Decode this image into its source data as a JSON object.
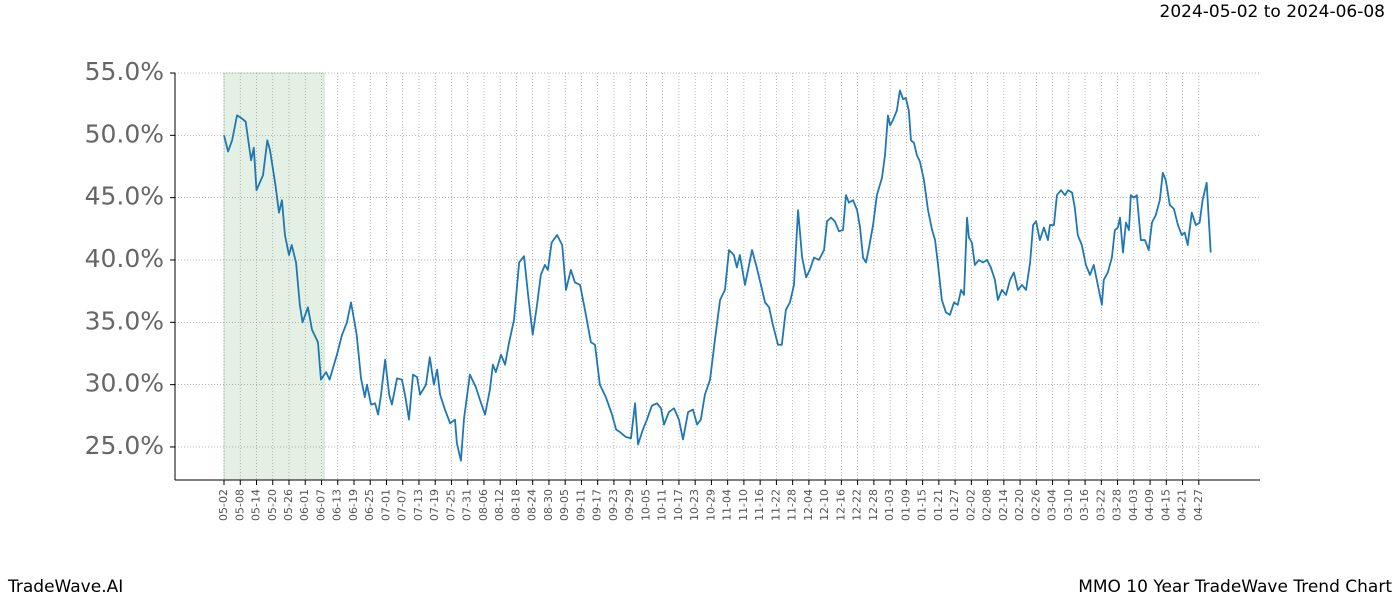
{
  "chart_data": {
    "type": "line",
    "title": "2024-05-02 to 2024-06-08",
    "footer_left": "TradeWave.AI",
    "footer_right": "MMO 10 Year TradeWave Trend Chart",
    "color": "#1f77b4",
    "grid": true,
    "highlight_span": [
      0,
      37
    ],
    "highlight_color": "#d8ead8",
    "xlim": [
      -18.1,
      382.6
    ],
    "ylim": [
      22.35,
      55.0
    ],
    "yticks": [
      {
        "value": 25,
        "label": "25.0%"
      },
      {
        "value": 30,
        "label": "30.0%"
      },
      {
        "value": 35,
        "label": "35.0%"
      },
      {
        "value": 40,
        "label": "40.0%"
      },
      {
        "value": 45,
        "label": "45.0%"
      },
      {
        "value": 50,
        "label": "50.0%"
      },
      {
        "value": 55,
        "label": "55.0%"
      }
    ],
    "xticks": [
      {
        "value": 0,
        "label": "05-02"
      },
      {
        "value": 6,
        "label": "05-08"
      },
      {
        "value": 12,
        "label": "05-14"
      },
      {
        "value": 18,
        "label": "05-20"
      },
      {
        "value": 24,
        "label": "05-26"
      },
      {
        "value": 30,
        "label": "06-01"
      },
      {
        "value": 36,
        "label": "06-07"
      },
      {
        "value": 42,
        "label": "06-13"
      },
      {
        "value": 48,
        "label": "06-19"
      },
      {
        "value": 54,
        "label": "06-25"
      },
      {
        "value": 60,
        "label": "07-01"
      },
      {
        "value": 66,
        "label": "07-07"
      },
      {
        "value": 72,
        "label": "07-13"
      },
      {
        "value": 78,
        "label": "07-19"
      },
      {
        "value": 84,
        "label": "07-25"
      },
      {
        "value": 90,
        "label": "07-31"
      },
      {
        "value": 96,
        "label": "08-06"
      },
      {
        "value": 102,
        "label": "08-12"
      },
      {
        "value": 108,
        "label": "08-18"
      },
      {
        "value": 114,
        "label": "08-24"
      },
      {
        "value": 120,
        "label": "08-30"
      },
      {
        "value": 126,
        "label": "09-05"
      },
      {
        "value": 132,
        "label": "09-11"
      },
      {
        "value": 138,
        "label": "09-17"
      },
      {
        "value": 144,
        "label": "09-23"
      },
      {
        "value": 150,
        "label": "09-29"
      },
      {
        "value": 156,
        "label": "10-05"
      },
      {
        "value": 162,
        "label": "10-11"
      },
      {
        "value": 168,
        "label": "10-17"
      },
      {
        "value": 174,
        "label": "10-23"
      },
      {
        "value": 180,
        "label": "10-29"
      },
      {
        "value": 186,
        "label": "11-04"
      },
      {
        "value": 192,
        "label": "11-10"
      },
      {
        "value": 198,
        "label": "11-16"
      },
      {
        "value": 204,
        "label": "11-22"
      },
      {
        "value": 210,
        "label": "11-28"
      },
      {
        "value": 216,
        "label": "12-04"
      },
      {
        "value": 222,
        "label": "12-10"
      },
      {
        "value": 228,
        "label": "12-16"
      },
      {
        "value": 234,
        "label": "12-22"
      },
      {
        "value": 240,
        "label": "12-28"
      },
      {
        "value": 246,
        "label": "01-03"
      },
      {
        "value": 252,
        "label": "01-09"
      },
      {
        "value": 258,
        "label": "01-15"
      },
      {
        "value": 264,
        "label": "01-21"
      },
      {
        "value": 270,
        "label": "01-27"
      },
      {
        "value": 276,
        "label": "02-02"
      },
      {
        "value": 282,
        "label": "02-08"
      },
      {
        "value": 288,
        "label": "02-14"
      },
      {
        "value": 294,
        "label": "02-20"
      },
      {
        "value": 300,
        "label": "02-26"
      },
      {
        "value": 306,
        "label": "03-04"
      },
      {
        "value": 312,
        "label": "03-10"
      },
      {
        "value": 318,
        "label": "03-16"
      },
      {
        "value": 324,
        "label": "03-22"
      },
      {
        "value": 330,
        "label": "03-28"
      },
      {
        "value": 336,
        "label": "04-03"
      },
      {
        "value": 342,
        "label": "04-09"
      },
      {
        "value": 348,
        "label": "04-15"
      },
      {
        "value": 354,
        "label": "04-21"
      },
      {
        "value": 360,
        "label": "04-27"
      }
    ],
    "x": [
      0,
      1.5,
      3,
      4.8,
      6.3,
      8,
      10,
      11,
      12,
      14.4,
      16,
      17,
      19,
      20.3,
      21.4,
      22.5,
      24,
      25,
      26.6,
      28,
      29,
      31,
      32.5,
      34.7,
      35.8,
      37.7,
      39,
      40.2,
      41.7,
      43.6,
      45.4,
      46.9,
      49,
      50.6,
      52,
      52.8,
      54.3,
      55.8,
      56.9,
      58,
      59.5,
      61,
      62,
      63.9,
      65.7,
      67,
      68.3,
      69.8,
      71.3,
      72.4,
      74.6,
      76,
      77.5,
      78.7,
      79.8,
      81.6,
      83.5,
      85.3,
      86,
      87.5,
      88.6,
      90.8,
      93,
      94.5,
      96.4,
      98.2,
      99.3,
      100.4,
      102.3,
      103.8,
      105.2,
      107.1,
      109,
      110.8,
      112.3,
      114,
      115.6,
      117,
      118.5,
      119.6,
      121,
      123,
      124.9,
      126.3,
      128.1,
      129.6,
      131.5,
      133.3,
      135.5,
      137,
      138.8,
      141,
      143.3,
      144.8,
      146.2,
      148.4,
      150.3,
      151.8,
      152.9,
      154.7,
      156.2,
      158,
      159.9,
      161.4,
      162.5,
      164.3,
      166.2,
      168,
      169.5,
      171.4,
      173.2,
      174.7,
      176.1,
      177.6,
      179.5,
      181.3,
      183.2,
      185,
      186.5,
      188.3,
      189.4,
      190.5,
      192.4,
      193.9,
      195,
      196.5,
      198.3,
      199.8,
      201.3,
      202.7,
      204.6,
      206,
      207.5,
      209,
      210.5,
      212,
      213.5,
      215,
      216.5,
      217.9,
      219.7,
      221.6,
      222.7,
      224.2,
      225.6,
      227.1,
      228.6,
      229.7,
      230.8,
      232.3,
      233.8,
      234.9,
      236,
      237.1,
      238.2,
      239.7,
      241.1,
      243,
      244.1,
      245.2,
      246,
      247,
      248.5,
      249.6,
      250.8,
      251.8,
      252.9,
      253.7,
      254.8,
      255.9,
      257,
      258.5,
      260,
      261.5,
      262.6,
      263.7,
      265.1,
      266.6,
      268.1,
      269.6,
      271,
      272.2,
      273.3,
      274.4,
      275.1,
      276.2,
      277.3,
      278.8,
      280.3,
      281.8,
      283.2,
      284.7,
      285.8,
      287.3,
      288.8,
      290.3,
      291.7,
      293.2,
      294.7,
      296.2,
      297.7,
      298.8,
      299.9,
      301.3,
      302.8,
      304.3,
      305,
      306.5,
      307.6,
      309.1,
      310.6,
      311.7,
      313.2,
      314.2,
      315.3,
      316.8,
      318.3,
      319.8,
      321.2,
      322.7,
      324.2,
      324.9,
      326.4,
      327.9,
      329,
      330.1,
      330.9,
      332,
      333.1,
      334.2,
      334.9,
      336,
      337.1,
      338.6,
      340.1,
      341.5,
      342.7,
      344.1,
      345.6,
      346.7,
      347.8,
      349.3,
      350.8,
      352.3,
      353.7,
      354.8,
      355.9,
      357.4,
      358.9,
      360.3,
      361.4,
      362.9,
      364.4
    ],
    "values": [
      50.0,
      48.7,
      49.6,
      51.6,
      51.4,
      51.1,
      48.0,
      49.0,
      45.6,
      46.8,
      49.6,
      48.8,
      46.0,
      43.8,
      44.8,
      42.0,
      40.4,
      41.2,
      39.8,
      36.4,
      35.0,
      36.2,
      34.4,
      33.4,
      30.4,
      31.0,
      30.4,
      31.3,
      32.4,
      34.0,
      35.0,
      36.6,
      34.0,
      30.5,
      29.0,
      30.0,
      28.4,
      28.5,
      27.6,
      29.2,
      32.0,
      29.2,
      28.4,
      30.5,
      30.4,
      29.0,
      27.2,
      30.8,
      30.6,
      29.2,
      30.0,
      32.2,
      30.0,
      31.2,
      29.2,
      28.0,
      26.9,
      27.2,
      25.3,
      23.9,
      27.2,
      30.8,
      29.8,
      28.8,
      27.6,
      29.6,
      31.6,
      31.0,
      32.4,
      31.6,
      33.3,
      35.2,
      39.8,
      40.3,
      37.2,
      34.0,
      36.4,
      38.8,
      39.6,
      39.2,
      41.4,
      42.0,
      41.2,
      37.6,
      39.2,
      38.2,
      38.0,
      36.0,
      33.4,
      33.2,
      30.0,
      29.0,
      27.6,
      26.4,
      26.2,
      25.8,
      25.7,
      28.5,
      25.2,
      26.4,
      27.2,
      28.3,
      28.5,
      28.1,
      26.8,
      27.8,
      28.1,
      27.2,
      25.6,
      27.8,
      28.0,
      26.8,
      27.2,
      29.2,
      30.4,
      33.6,
      36.8,
      37.6,
      40.8,
      40.4,
      39.4,
      40.4,
      38.0,
      39.6,
      40.8,
      39.6,
      38.0,
      36.6,
      36.2,
      34.8,
      33.2,
      33.2,
      36.0,
      36.6,
      38.0,
      44.0,
      40.2,
      38.6,
      39.3,
      40.2,
      40.0,
      40.8,
      43.1,
      43.4,
      43.1,
      42.3,
      42.4,
      45.2,
      44.6,
      44.8,
      44.0,
      42.6,
      40.2,
      39.8,
      41.0,
      42.8,
      45.2,
      46.6,
      48.4,
      51.6,
      50.8,
      51.2,
      52.0,
      53.6,
      52.9,
      53.0,
      52.0,
      49.6,
      49.4,
      48.4,
      47.9,
      46.4,
      44.0,
      42.4,
      41.6,
      39.6,
      36.8,
      35.8,
      35.6,
      36.6,
      36.4,
      37.6,
      37.2,
      43.4,
      41.8,
      41.4,
      39.6,
      40.0,
      39.8,
      40.0,
      39.4,
      38.4,
      36.8,
      37.6,
      37.2,
      38.4,
      39.0,
      37.6,
      38.0,
      37.6,
      39.8,
      42.8,
      43.1,
      41.6,
      42.6,
      41.6,
      42.8,
      42.8,
      45.2,
      45.6,
      45.2,
      45.6,
      45.4,
      44.2,
      42.0,
      41.2,
      39.6,
      38.8,
      39.6,
      38.0,
      36.4,
      38.4,
      39.0,
      40.2,
      42.4,
      42.6,
      43.4,
      40.6,
      43.0,
      42.4,
      45.2,
      45.0,
      45.2,
      41.6,
      41.6,
      40.8,
      43.0,
      43.6,
      44.8,
      47.0,
      46.4,
      44.4,
      44.1,
      42.8,
      42.0,
      42.2,
      41.2,
      43.8,
      42.8,
      43.0,
      44.8,
      46.2,
      40.6
    ]
  }
}
